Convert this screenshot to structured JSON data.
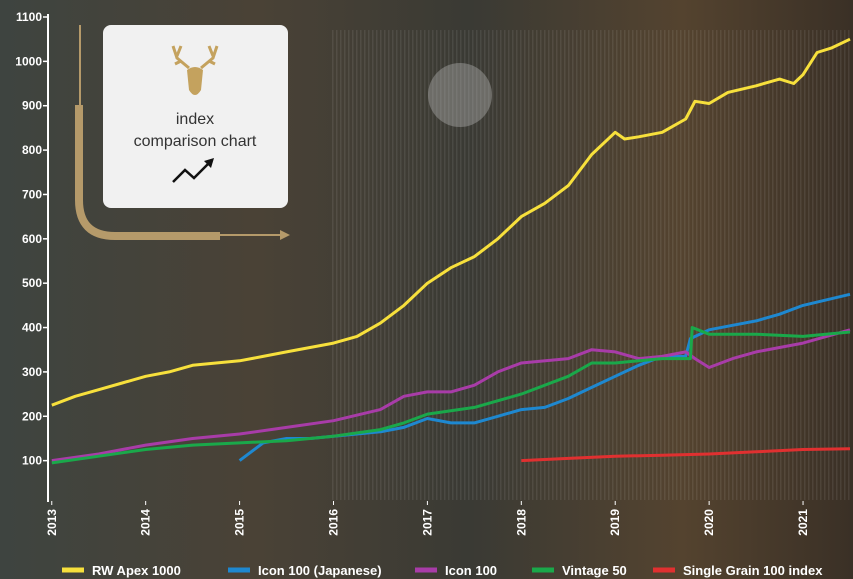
{
  "chart_data": {
    "type": "line",
    "annotations": [
      "index",
      "comparison chart"
    ],
    "xlim": [
      2012.96,
      2021.5
    ],
    "xticks": [
      2013,
      2014,
      2015,
      2016,
      2017,
      2018,
      2019,
      2020,
      2021
    ],
    "ylim": [
      0,
      1100
    ],
    "yticks": [
      100,
      200,
      300,
      400,
      500,
      600,
      700,
      800,
      900,
      1000,
      1100
    ],
    "series": [
      {
        "name": "RW Apex 1000",
        "color": "#f7e03c",
        "x": [
          2013.0,
          2013.25,
          2013.5,
          2013.75,
          2014.0,
          2014.25,
          2014.5,
          2014.75,
          2015.0,
          2015.25,
          2015.5,
          2015.75,
          2016.0,
          2016.25,
          2016.5,
          2016.75,
          2017.0,
          2017.25,
          2017.5,
          2017.75,
          2018.0,
          2018.25,
          2018.5,
          2018.75,
          2019.0,
          2019.1,
          2019.25,
          2019.5,
          2019.75,
          2019.85,
          2020.0,
          2020.2,
          2020.5,
          2020.75,
          2020.9,
          2021.0,
          2021.15,
          2021.3,
          2021.5
        ],
        "values": [
          225,
          245,
          260,
          275,
          290,
          300,
          315,
          320,
          325,
          335,
          345,
          355,
          365,
          380,
          410,
          450,
          500,
          535,
          560,
          600,
          650,
          680,
          720,
          790,
          840,
          825,
          830,
          840,
          870,
          910,
          905,
          930,
          945,
          960,
          950,
          970,
          1020,
          1030,
          1050
        ]
      },
      {
        "name": "Icon 100 (Japanese)",
        "color": "#1e88d0",
        "x": [
          2015.0,
          2015.25,
          2015.5,
          2015.75,
          2016.0,
          2016.5,
          2016.75,
          2017.0,
          2017.25,
          2017.5,
          2017.75,
          2018.0,
          2018.25,
          2018.5,
          2018.75,
          2019.0,
          2019.25,
          2019.5,
          2019.75,
          2019.8,
          2020.0,
          2020.25,
          2020.5,
          2020.75,
          2021.0,
          2021.5
        ],
        "values": [
          100,
          140,
          150,
          150,
          155,
          165,
          175,
          195,
          185,
          185,
          200,
          215,
          220,
          240,
          265,
          290,
          315,
          335,
          335,
          375,
          395,
          405,
          415,
          430,
          450,
          475
        ]
      },
      {
        "name": "Icon 100",
        "color": "#a83ca8",
        "x": [
          2013.0,
          2013.5,
          2014.0,
          2014.5,
          2015.0,
          2015.5,
          2016.0,
          2016.5,
          2016.75,
          2017.0,
          2017.25,
          2017.5,
          2017.75,
          2018.0,
          2018.5,
          2018.75,
          2019.0,
          2019.25,
          2019.5,
          2019.75,
          2019.85,
          2020.0,
          2020.25,
          2020.5,
          2020.75,
          2021.0,
          2021.5
        ],
        "values": [
          100,
          115,
          135,
          150,
          160,
          175,
          190,
          215,
          245,
          255,
          255,
          270,
          300,
          320,
          330,
          350,
          345,
          330,
          335,
          345,
          330,
          310,
          330,
          345,
          355,
          365,
          395
        ]
      },
      {
        "name": "Vintage 50",
        "color": "#1aa84a",
        "x": [
          2013.0,
          2013.5,
          2014.0,
          2014.5,
          2015.0,
          2015.5,
          2016.0,
          2016.5,
          2016.75,
          2017.0,
          2017.5,
          2018.0,
          2018.5,
          2018.75,
          2019.0,
          2019.5,
          2019.8,
          2019.82,
          2020.0,
          2020.5,
          2021.0,
          2021.5
        ],
        "values": [
          95,
          110,
          125,
          135,
          140,
          145,
          155,
          170,
          185,
          205,
          220,
          250,
          290,
          320,
          320,
          330,
          330,
          400,
          385,
          385,
          380,
          390
        ]
      },
      {
        "name": "Single Grain 100 index",
        "color": "#e03030",
        "x": [
          2018.0,
          2018.5,
          2019.0,
          2019.5,
          2020.0,
          2020.5,
          2021.0,
          2021.5
        ],
        "values": [
          100,
          105,
          110,
          112,
          115,
          120,
          125,
          127
        ]
      }
    ]
  }
}
